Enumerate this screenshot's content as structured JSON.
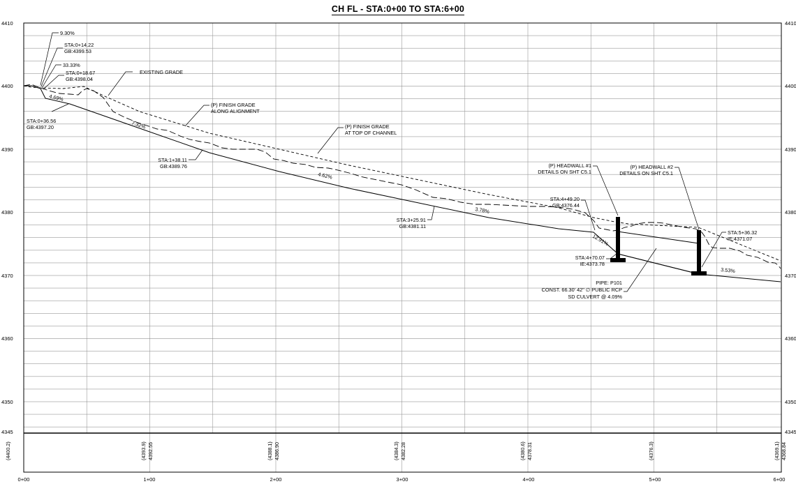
{
  "title": "CH FL - STA:0+00 TO STA:6+00",
  "y_ticks_left": [
    "4410",
    "4400",
    "4390",
    "4380",
    "4370",
    "4360",
    "4350",
    "4345"
  ],
  "y_ticks_right": [
    "4410",
    "4400",
    "4390",
    "4380",
    "4370",
    "4360",
    "4350",
    "4345"
  ],
  "x_ticks": [
    "0+00",
    "1+00",
    "2+00",
    "3+00",
    "4+00",
    "5+00",
    "6+00"
  ],
  "band": [
    {
      "sta": 0,
      "existing": "(4400.2)",
      "proposed": ""
    },
    {
      "sta": 100,
      "existing": "(4393.9)",
      "proposed": "4392.55"
    },
    {
      "sta": 200,
      "existing": "(4388.1)",
      "proposed": "4386.90"
    },
    {
      "sta": 300,
      "existing": "(4384.3)",
      "proposed": "4382.28"
    },
    {
      "sta": 400,
      "existing": "(4380.6)",
      "proposed": "4378.31"
    },
    {
      "sta": 500,
      "existing": "(4376.3)",
      "proposed": ""
    },
    {
      "sta": 600,
      "existing": "(4369.1)",
      "proposed": "4368.84"
    }
  ],
  "annotations": {
    "a1": "9.30%",
    "a2a": "STA:0+14.22",
    "a2b": "GB:4399.53",
    "a3": "33.33%",
    "a4a": "STA:0+18.67",
    "a4b": "GB:4398.04",
    "a5": "EXISTING GRADE",
    "a6a": "STA:0+36.56",
    "a6b": "GB:4397.20",
    "a7a": "(P) FINISH GRADE",
    "a7b": "ALONG ALIGNMENT",
    "a8a": "(P) FINISH GRADE",
    "a8b": "AT TOP OF CHANNEL",
    "a9a": "STA:1+38.11",
    "a9b": "GB:4389.76",
    "a10a": "(P) HEADWALL #1",
    "a10b": "DETAILS ON SHT C5.1",
    "a11a": "(P) HEADWALL #2",
    "a11b": "DETAILS ON SHT C5.1",
    "a12a": "STA:4+49.20",
    "a12b": "GB:4376.44",
    "a13a": "STA:3+25.91",
    "a13b": "GB:4381.11",
    "a14a": "STA:5+36.32",
    "a14b": "IE:4371.07",
    "a15a": "STA:4+70.07",
    "a15b": "IE:4373.78",
    "a16a": "PIPE: P101",
    "a16b": "CONST. 66.30' 42\" ∅ PUBLIC RCP",
    "a16c": "SD CULVERT @ 4.09%"
  },
  "slopes": {
    "s1": "4.69%",
    "s2": "7.32%",
    "s3": "4.62%",
    "s4": "3.78%",
    "s5": "12.91%",
    "s6": "3.53%"
  }
}
